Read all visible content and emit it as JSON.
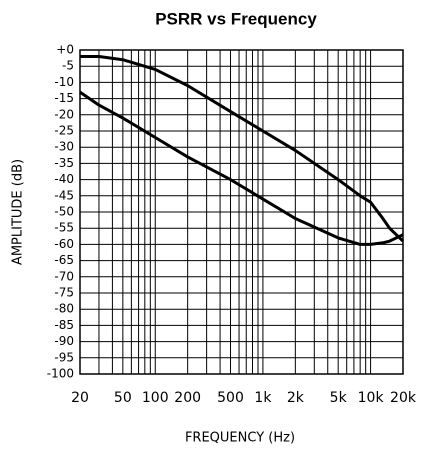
{
  "chart_data": {
    "type": "line",
    "title": "PSRR vs Frequency",
    "xlabel": "FREQUENCY (Hz)",
    "ylabel": "AMPLITUDE (dB)",
    "xscale": "log",
    "grid": true,
    "xlim": [
      20,
      20000
    ],
    "ylim": [
      -100,
      0
    ],
    "xticks": [
      20,
      50,
      100,
      200,
      500,
      {
        "value": 1000,
        "label": "1k"
      },
      {
        "value": 2000,
        "label": "2k"
      },
      {
        "value": 5000,
        "label": "5k"
      },
      {
        "value": 10000,
        "label": "10k"
      },
      {
        "value": 20000,
        "label": "20k"
      }
    ],
    "xminor": [
      30,
      40,
      60,
      70,
      80,
      90,
      300,
      400,
      600,
      700,
      800,
      900,
      3000,
      4000,
      6000,
      7000,
      8000,
      9000
    ],
    "yticks": [
      {
        "value": 0,
        "label": "+0"
      },
      -5,
      -10,
      -15,
      -20,
      -25,
      -30,
      -35,
      -40,
      -45,
      -50,
      -55,
      -60,
      -65,
      -70,
      -75,
      -80,
      -85,
      -90,
      -95,
      -100
    ],
    "x": [
      20,
      30,
      50,
      100,
      200,
      500,
      1000,
      2000,
      5000,
      8000,
      10000,
      13000,
      15000,
      20000
    ],
    "series": [
      {
        "color": "#000000",
        "values": [
          -2,
          -2,
          -3,
          -6,
          -11,
          -19,
          -25,
          -31,
          -40,
          -45,
          -47,
          -52,
          -55,
          -59
        ]
      },
      {
        "color": "#000000",
        "values": [
          -13,
          -17,
          -21,
          -27,
          -33,
          -40,
          -46,
          -52,
          -58,
          -60,
          -60,
          -59.5,
          -59,
          -57
        ]
      }
    ]
  }
}
